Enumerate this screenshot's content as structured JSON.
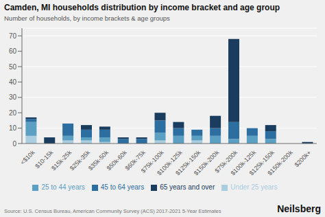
{
  "chart_data": {
    "type": "bar",
    "title": "Camden, MI households distribution by income bracket and age group",
    "subtitle": "Number of households, by income brackets & age groups",
    "annotations": [
      "Source: U.S. Census Bureau, American Community Survey (ACS) 2017-2021 5-Year Estimates",
      "Neilsberg"
    ],
    "categories": [
      "<$10k",
      "$10-15k",
      "$15k-25k",
      "$25k-35k",
      "$35k-50k",
      "$50k-60k",
      "$60k-75k",
      "$75k-100k",
      "$100k-125k",
      "$125k-150k",
      "$150k-200k",
      "$75k-200k",
      "$100k-125k",
      "$125k-150k",
      "$150k-200k",
      "$200k+"
    ],
    "series": [
      {
        "name": "Under 25 years",
        "color": "#aacde0",
        "values": [
          5,
          0,
          2,
          2,
          1,
          0,
          0,
          2,
          0,
          2,
          0,
          0,
          0,
          0,
          0,
          0
        ]
      },
      {
        "name": "25 to 44 years",
        "color": "#5b9fc2",
        "values": [
          9,
          0,
          3,
          2,
          3,
          0,
          0,
          5,
          5,
          3,
          5,
          3,
          5,
          3,
          0,
          0
        ]
      },
      {
        "name": "45 to 64 years",
        "color": "#2d6ea0",
        "values": [
          2,
          0,
          8,
          5,
          5,
          3,
          3,
          8,
          5,
          4,
          5,
          11,
          5,
          5,
          0,
          0
        ]
      },
      {
        "name": "65 years and over",
        "color": "#1a3c5e",
        "values": [
          1,
          4,
          0,
          3,
          2,
          1,
          1,
          5,
          4,
          0,
          8,
          54,
          0,
          4,
          0,
          1
        ]
      }
    ],
    "stacked": true,
    "ylim": [
      0,
      75
    ],
    "yticks": [
      0,
      10,
      20,
      30,
      40,
      50,
      60,
      70
    ],
    "grid": true,
    "legend": "bottom"
  }
}
